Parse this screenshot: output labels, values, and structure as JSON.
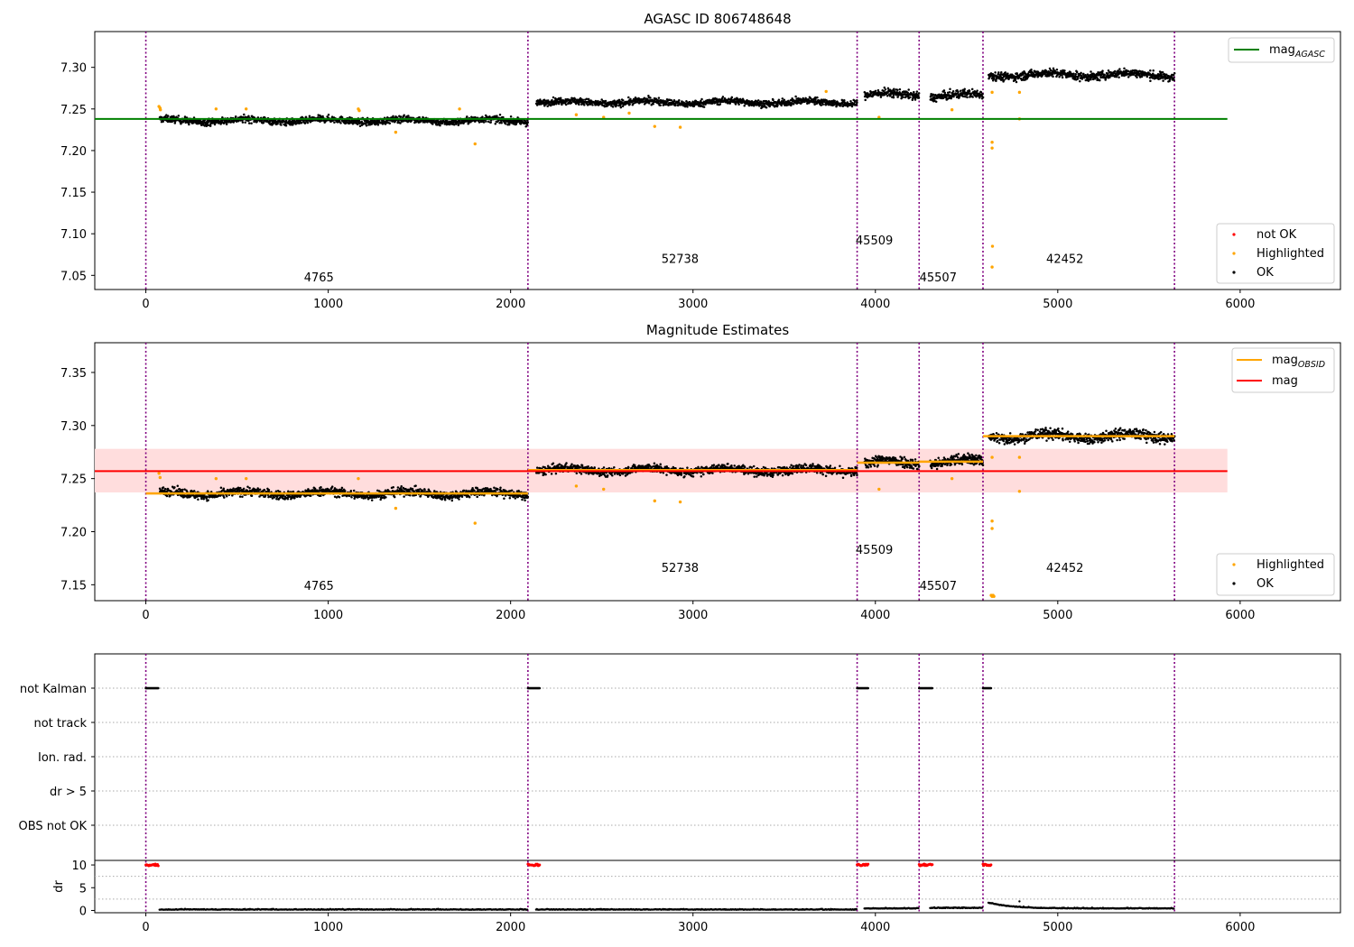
{
  "chart_data": [
    {
      "type": "scatter",
      "title": "AGASC ID 806748648",
      "xlim": [
        -280,
        6550
      ],
      "ylim": [
        7.033,
        7.343
      ],
      "xticks": [
        0,
        1000,
        2000,
        3000,
        4000,
        5000,
        6000
      ],
      "yticks": [
        7.05,
        7.1,
        7.15,
        7.2,
        7.25,
        7.3
      ],
      "ytick_labels": [
        "7.05",
        "7.10",
        "7.15",
        "7.20",
        "7.25",
        "7.30"
      ],
      "boundaries": [
        0,
        2095,
        3900,
        4240,
        4590,
        5640
      ],
      "obsids": [
        {
          "label": "4765",
          "x": 1040,
          "y": 7.043
        },
        {
          "label": "52738",
          "x": 3000,
          "y": 7.065
        },
        {
          "label": "45509",
          "x": 4065,
          "y": 7.087
        },
        {
          "label": "45507",
          "x": 4415,
          "y": 7.043
        },
        {
          "label": "42452",
          "x": 5110,
          "y": 7.065
        }
      ],
      "segments": [
        {
          "x0": 75,
          "x1": 2095,
          "level": 7.236,
          "spread": 0.004
        },
        {
          "x0": 2140,
          "x1": 3900,
          "level": 7.258,
          "spread": 0.004
        },
        {
          "x0": 3940,
          "x1": 4240,
          "level": 7.267,
          "spread": 0.005
        },
        {
          "x0": 4300,
          "x1": 4590,
          "level": 7.266,
          "spread": 0.005
        },
        {
          "x0": 4620,
          "x1": 5640,
          "level": 7.291,
          "spread": 0.005
        }
      ],
      "highlighted_points": [
        {
          "x": 72,
          "y": 7.253
        },
        {
          "x": 78,
          "y": 7.251
        },
        {
          "x": 80,
          "y": 7.249
        },
        {
          "x": 385,
          "y": 7.25
        },
        {
          "x": 550,
          "y": 7.25
        },
        {
          "x": 1165,
          "y": 7.25
        },
        {
          "x": 1170,
          "y": 7.248
        },
        {
          "x": 1370,
          "y": 7.222
        },
        {
          "x": 1720,
          "y": 7.25
        },
        {
          "x": 1805,
          "y": 7.208
        },
        {
          "x": 2360,
          "y": 7.243
        },
        {
          "x": 2510,
          "y": 7.24
        },
        {
          "x": 2650,
          "y": 7.245
        },
        {
          "x": 2790,
          "y": 7.229
        },
        {
          "x": 2930,
          "y": 7.228
        },
        {
          "x": 3730,
          "y": 7.271
        },
        {
          "x": 4020,
          "y": 7.24
        },
        {
          "x": 4420,
          "y": 7.249
        },
        {
          "x": 4640,
          "y": 7.27
        },
        {
          "x": 4640,
          "y": 7.21
        },
        {
          "x": 4640,
          "y": 7.203
        },
        {
          "x": 4642,
          "y": 7.085
        },
        {
          "x": 4640,
          "y": 7.06
        },
        {
          "x": 4790,
          "y": 7.238
        },
        {
          "x": 4790,
          "y": 7.27
        }
      ],
      "lines": [
        {
          "name": "mag_AGASC",
          "value": 7.238,
          "x0": -280,
          "x1": 5930,
          "color": "#008000"
        }
      ],
      "legends": [
        {
          "position": "upper right",
          "items": [
            {
              "kind": "line",
              "color": "#008000",
              "label": "mag",
              "sub": "AGASC"
            }
          ]
        },
        {
          "position": "lower right",
          "items": [
            {
              "kind": "dot",
              "color": "#ff0000",
              "label": "not OK",
              "sub": ""
            },
            {
              "kind": "dot",
              "color": "#ffa500",
              "label": "Highlighted",
              "sub": ""
            },
            {
              "kind": "dot",
              "color": "#000000",
              "label": "OK",
              "sub": ""
            }
          ]
        }
      ]
    },
    {
      "type": "scatter",
      "title": "Magnitude Estimates",
      "xlim": [
        -280,
        6550
      ],
      "ylim": [
        7.135,
        7.378
      ],
      "xticks": [
        0,
        1000,
        2000,
        3000,
        4000,
        5000,
        6000
      ],
      "yticks": [
        7.15,
        7.2,
        7.25,
        7.3,
        7.35
      ],
      "ytick_labels": [
        "7.15",
        "7.20",
        "7.25",
        "7.30",
        "7.35"
      ],
      "boundaries": [
        0,
        2095,
        3900,
        4240,
        4590,
        5640
      ],
      "obsids": [
        {
          "label": "4765",
          "x": 1040,
          "y": 7.145
        },
        {
          "label": "52738",
          "x": 3000,
          "y": 7.162
        },
        {
          "label": "45509",
          "x": 4065,
          "y": 7.179
        },
        {
          "label": "45507",
          "x": 4415,
          "y": 7.145
        },
        {
          "label": "42452",
          "x": 5110,
          "y": 7.162
        }
      ],
      "segments": [
        {
          "x0": 75,
          "x1": 2095,
          "level": 7.236,
          "spread": 0.004
        },
        {
          "x0": 2140,
          "x1": 3900,
          "level": 7.258,
          "spread": 0.004
        },
        {
          "x0": 3940,
          "x1": 4240,
          "level": 7.265,
          "spread": 0.005
        },
        {
          "x0": 4300,
          "x1": 4590,
          "level": 7.266,
          "spread": 0.005
        },
        {
          "x0": 4620,
          "x1": 5640,
          "level": 7.29,
          "spread": 0.005
        }
      ],
      "highlighted_points": [
        {
          "x": 72,
          "y": 7.255
        },
        {
          "x": 78,
          "y": 7.251
        },
        {
          "x": 385,
          "y": 7.25
        },
        {
          "x": 550,
          "y": 7.25
        },
        {
          "x": 1165,
          "y": 7.25
        },
        {
          "x": 1370,
          "y": 7.222
        },
        {
          "x": 1805,
          "y": 7.208
        },
        {
          "x": 2360,
          "y": 7.243
        },
        {
          "x": 2510,
          "y": 7.24
        },
        {
          "x": 2790,
          "y": 7.229
        },
        {
          "x": 2930,
          "y": 7.228
        },
        {
          "x": 4020,
          "y": 7.24
        },
        {
          "x": 4420,
          "y": 7.25
        },
        {
          "x": 4640,
          "y": 7.27
        },
        {
          "x": 4640,
          "y": 7.21
        },
        {
          "x": 4640,
          "y": 7.203
        },
        {
          "x": 4790,
          "y": 7.238
        },
        {
          "x": 4790,
          "y": 7.27
        },
        {
          "x": 4635,
          "y": 7.14
        },
        {
          "x": 4640,
          "y": 7.139
        },
        {
          "x": 4645,
          "y": 7.14
        },
        {
          "x": 4650,
          "y": 7.139
        }
      ],
      "obsid_mag": [
        {
          "x0": 0,
          "x1": 2095,
          "value": 7.236
        },
        {
          "x0": 2095,
          "x1": 3900,
          "value": 7.258
        },
        {
          "x0": 3900,
          "x1": 4240,
          "value": 7.265
        },
        {
          "x0": 4240,
          "x1": 4590,
          "value": 7.266
        },
        {
          "x0": 4590,
          "x1": 5640,
          "value": 7.29
        }
      ],
      "mag": {
        "value": 7.257,
        "band": [
          7.237,
          7.278
        ],
        "x0": -280,
        "x1": 5930,
        "color": "#ff0000",
        "band_color": "#ffdddd"
      },
      "legends": [
        {
          "position": "upper right",
          "items": [
            {
              "kind": "line",
              "color": "#ffa500",
              "label": "mag",
              "sub": "OBSID"
            },
            {
              "kind": "line",
              "color": "#ff0000",
              "label": "mag",
              "sub": ""
            }
          ]
        },
        {
          "position": "lower right",
          "items": [
            {
              "kind": "dot",
              "color": "#ffa500",
              "label": "Highlighted",
              "sub": ""
            },
            {
              "kind": "dot",
              "color": "#000000",
              "label": "OK",
              "sub": ""
            }
          ]
        }
      ]
    },
    {
      "type": "scatter",
      "title": "",
      "xlim": [
        -280,
        6550
      ],
      "flag_rows": [
        "not Kalman",
        "not track",
        "Ion. rad.",
        "dr > 5",
        "OBS not OK"
      ],
      "kalman_segments": [
        [
          0,
          70
        ],
        [
          2095,
          2160
        ],
        [
          3900,
          3960
        ],
        [
          4240,
          4315
        ],
        [
          4590,
          4635
        ]
      ],
      "dr_flag_segments": [
        [
          0,
          70
        ],
        [
          2095,
          2160
        ],
        [
          3900,
          3960
        ],
        [
          4240,
          4315
        ],
        [
          4590,
          4635
        ]
      ],
      "dr_ylim": [
        -0.5,
        11
      ],
      "dr_yticks": [
        0,
        5,
        10
      ],
      "dr_ylabel": "dr",
      "dr_segments": [
        {
          "x0": 75,
          "x1": 2095,
          "level": 0.15
        },
        {
          "x0": 2140,
          "x1": 3900,
          "level": 0.15
        },
        {
          "x0": 3940,
          "x1": 4240,
          "level": 0.4
        },
        {
          "x0": 4300,
          "x1": 4590,
          "level": 0.5
        },
        {
          "x0": 4620,
          "x1": 5640,
          "level": 0.6
        }
      ],
      "xticks": [
        0,
        1000,
        2000,
        3000,
        4000,
        5000,
        6000
      ],
      "boundaries": [
        0,
        2095,
        3900,
        4240,
        4590,
        5640
      ]
    }
  ]
}
